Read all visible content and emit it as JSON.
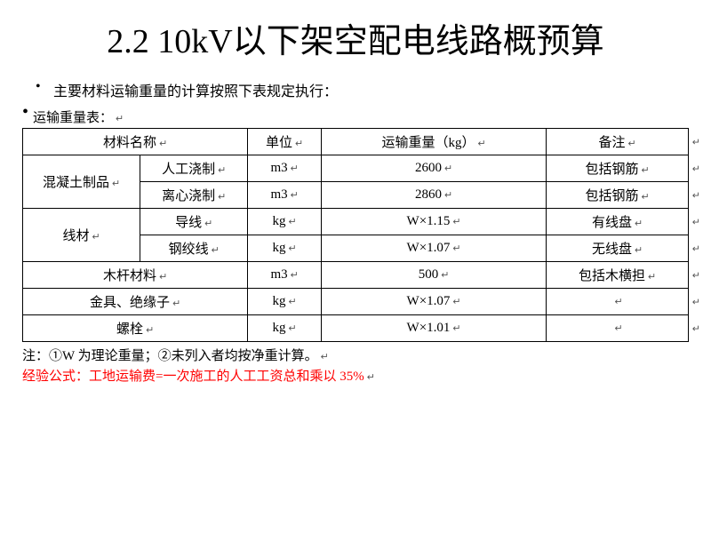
{
  "title": "2.2 10kV以下架空配电线路概预算",
  "bullet": "主要材料运输重量的计算按照下表规定执行：",
  "table_caption": "运输重量表：",
  "headers": {
    "material": "材料名称",
    "unit": "单位",
    "weight": "运输重量（kg）",
    "note": "备注"
  },
  "rows": {
    "concrete_group": "混凝土制品",
    "concrete_manual": {
      "name": "人工浇制",
      "unit": "m3",
      "weight": "2600",
      "note": "包括钢筋"
    },
    "concrete_centrifugal": {
      "name": "离心浇制",
      "unit": "m3",
      "weight": "2860",
      "note": "包括钢筋"
    },
    "wire_group": "线材",
    "wire_conductor": {
      "name": "导线",
      "unit": "kg",
      "weight": "W×1.15",
      "note": "有线盘"
    },
    "wire_steel": {
      "name": "钢绞线",
      "unit": "kg",
      "weight": "W×1.07",
      "note": "无线盘"
    },
    "wood": {
      "name": "木杆材料",
      "unit": "m3",
      "weight": "500",
      "note": "包括木横担"
    },
    "fitting": {
      "name": "金具、绝缘子",
      "unit": "kg",
      "weight": "W×1.07",
      "note": ""
    },
    "bolt": {
      "name": "螺栓",
      "unit": "kg",
      "weight": "W×1.01",
      "note": ""
    }
  },
  "footnote": "注：①W 为理论重量；②未列入者均按净重计算。",
  "formula": "经验公式：工地运输费=一次施工的人工工资总和乘以 35%",
  "ret": "↵",
  "colors": {
    "formula_color": "#ff0000",
    "ret_color": "#555555"
  }
}
